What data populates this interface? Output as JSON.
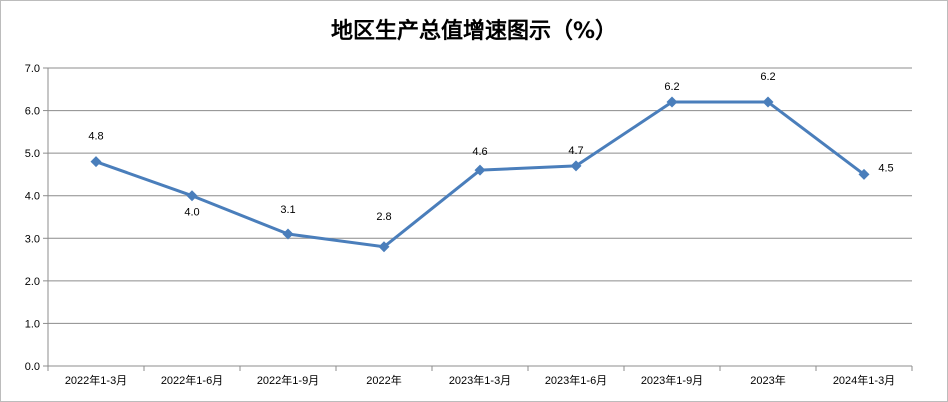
{
  "chart_data": {
    "type": "line",
    "title": "地区生产总值增速图示（%）",
    "xlabel": "",
    "ylabel": "",
    "categories": [
      "2022年1-3月",
      "2022年1-6月",
      "2022年1-9月",
      "2022年",
      "2023年1-3月",
      "2023年1-6月",
      "2023年1-9月",
      "2023年",
      "2024年1-3月"
    ],
    "series": [
      {
        "values": [
          4.8,
          4.0,
          3.1,
          2.8,
          4.6,
          4.7,
          6.2,
          6.2,
          4.5
        ],
        "color": "#4a7ebb"
      }
    ],
    "data_labels": [
      "4.8",
      "4.0",
      "3.1",
      "2.8",
      "4.6",
      "4.7",
      "6.2",
      "6.2",
      "4.5"
    ],
    "yticks": [
      "0.0",
      "1.0",
      "2.0",
      "3.0",
      "4.0",
      "5.0",
      "6.0",
      "7.0"
    ],
    "ylim": [
      0,
      7
    ],
    "grid": true,
    "legend": "none",
    "marker": "diamond"
  }
}
